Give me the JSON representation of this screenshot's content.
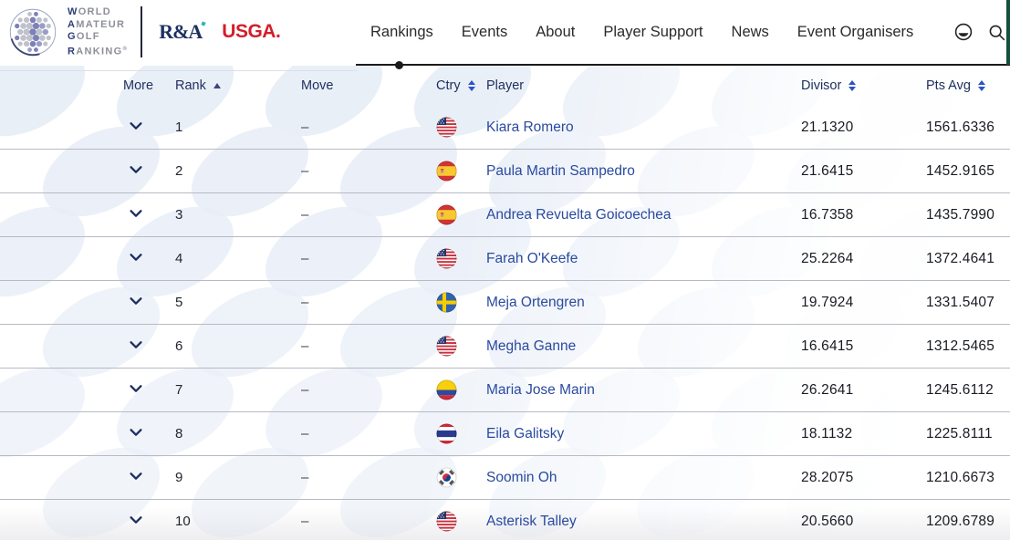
{
  "brand": {
    "logo_lines": [
      "WORLD",
      "AMATEUR",
      "GOLF",
      "RANKING"
    ],
    "registered_mark": "®",
    "partners": [
      {
        "name": "R&A"
      },
      {
        "name": "USGA."
      }
    ]
  },
  "nav": {
    "items": [
      {
        "label": "Rankings",
        "active": true
      },
      {
        "label": "Events",
        "active": false
      },
      {
        "label": "About",
        "active": false
      },
      {
        "label": "Player Support",
        "active": false
      },
      {
        "label": "News",
        "active": false
      },
      {
        "label": "Event Organisers",
        "active": false
      }
    ],
    "icons": [
      {
        "name": "contrast-icon"
      },
      {
        "name": "search-icon"
      }
    ]
  },
  "table": {
    "columns": [
      {
        "label": "More",
        "sort": "none"
      },
      {
        "label": "Rank",
        "sort": "asc"
      },
      {
        "label": "Move",
        "sort": "none"
      },
      {
        "label": "Ctry",
        "sort": "both"
      },
      {
        "label": "Player",
        "sort": "none"
      },
      {
        "label": "Divisor",
        "sort": "both"
      },
      {
        "label": "Pts Avg",
        "sort": "both"
      }
    ],
    "rows": [
      {
        "rank": "1",
        "move": "–",
        "country": "USA",
        "player": "Kiara Romero",
        "divisor": "21.1320",
        "pts_avg": "1561.6336"
      },
      {
        "rank": "2",
        "move": "–",
        "country": "ESP",
        "player": "Paula Martin Sampedro",
        "divisor": "21.6415",
        "pts_avg": "1452.9165"
      },
      {
        "rank": "3",
        "move": "–",
        "country": "ESP",
        "player": "Andrea Revuelta Goicoechea",
        "divisor": "16.7358",
        "pts_avg": "1435.7990"
      },
      {
        "rank": "4",
        "move": "–",
        "country": "USA",
        "player": "Farah O'Keefe",
        "divisor": "25.2264",
        "pts_avg": "1372.4641"
      },
      {
        "rank": "5",
        "move": "–",
        "country": "SWE",
        "player": "Meja Ortengren",
        "divisor": "19.7924",
        "pts_avg": "1331.5407"
      },
      {
        "rank": "6",
        "move": "–",
        "country": "USA",
        "player": "Megha Ganne",
        "divisor": "16.6415",
        "pts_avg": "1312.5465"
      },
      {
        "rank": "7",
        "move": "–",
        "country": "COL",
        "player": "Maria Jose Marin",
        "divisor": "26.2641",
        "pts_avg": "1245.6112"
      },
      {
        "rank": "8",
        "move": "–",
        "country": "THA",
        "player": "Eila Galitsky",
        "divisor": "18.1132",
        "pts_avg": "1225.8111"
      },
      {
        "rank": "9",
        "move": "–",
        "country": "KOR",
        "player": "Soomin Oh",
        "divisor": "28.2075",
        "pts_avg": "1210.6673"
      },
      {
        "rank": "10",
        "move": "–",
        "country": "USA",
        "player": "Asterisk Talley",
        "divisor": "20.5660",
        "pts_avg": "1209.6789"
      }
    ]
  },
  "colors": {
    "accent_navy": "#1e2f5e",
    "link_blue": "#2a4a9f",
    "sort_blue": "#2d53c4",
    "usga_red": "#d21e2b",
    "ra_navy": "#1d3160",
    "nav_line": "#1b1b1b",
    "row_border": "#b7bac4",
    "blob_blue": "#e8eef7",
    "scroll_strip_green": "#155039"
  }
}
